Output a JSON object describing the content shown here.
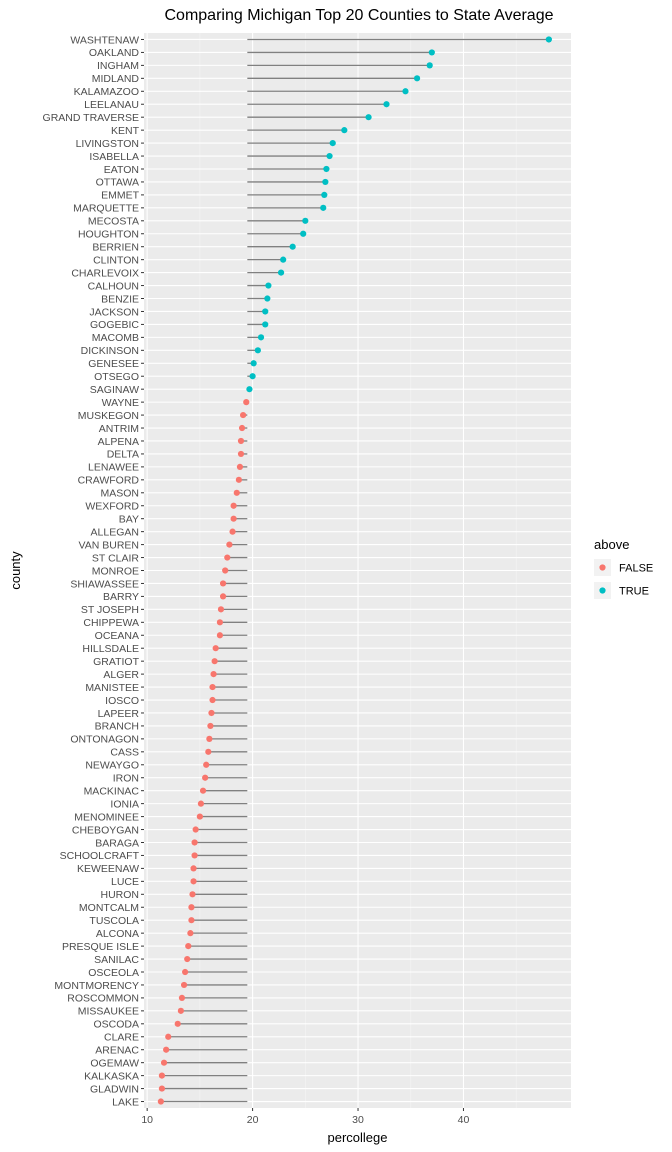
{
  "chart_data": {
    "type": "scatter",
    "subtype": "lollipop",
    "title": "Comparing Michigan Top 20 Counties to State Average",
    "xlabel": "percollege",
    "ylabel": "county",
    "xlim": [
      9.7,
      50.2
    ],
    "x_ticks": [
      10,
      20,
      30,
      40
    ],
    "baseline": 19.5,
    "grid": true,
    "legend": {
      "title": "above",
      "position": "right",
      "entries": [
        {
          "label": "FALSE",
          "color": "#F8766D"
        },
        {
          "label": "TRUE",
          "color": "#00BFC4"
        }
      ]
    },
    "points": [
      {
        "county": "WASHTENAW",
        "percollege": 48.1,
        "above": "TRUE"
      },
      {
        "county": "OAKLAND",
        "percollege": 37.0,
        "above": "TRUE"
      },
      {
        "county": "INGHAM",
        "percollege": 36.8,
        "above": "TRUE"
      },
      {
        "county": "MIDLAND",
        "percollege": 35.6,
        "above": "TRUE"
      },
      {
        "county": "KALAMAZOO",
        "percollege": 34.5,
        "above": "TRUE"
      },
      {
        "county": "LEELANAU",
        "percollege": 32.7,
        "above": "TRUE"
      },
      {
        "county": "GRAND TRAVERSE",
        "percollege": 31.0,
        "above": "TRUE"
      },
      {
        "county": "KENT",
        "percollege": 28.7,
        "above": "TRUE"
      },
      {
        "county": "LIVINGSTON",
        "percollege": 27.6,
        "above": "TRUE"
      },
      {
        "county": "ISABELLA",
        "percollege": 27.3,
        "above": "TRUE"
      },
      {
        "county": "EATON",
        "percollege": 27.0,
        "above": "TRUE"
      },
      {
        "county": "OTTAWA",
        "percollege": 26.9,
        "above": "TRUE"
      },
      {
        "county": "EMMET",
        "percollege": 26.8,
        "above": "TRUE"
      },
      {
        "county": "MARQUETTE",
        "percollege": 26.7,
        "above": "TRUE"
      },
      {
        "county": "MECOSTA",
        "percollege": 25.0,
        "above": "TRUE"
      },
      {
        "county": "HOUGHTON",
        "percollege": 24.8,
        "above": "TRUE"
      },
      {
        "county": "BERRIEN",
        "percollege": 23.8,
        "above": "TRUE"
      },
      {
        "county": "CLINTON",
        "percollege": 22.9,
        "above": "TRUE"
      },
      {
        "county": "CHARLEVOIX",
        "percollege": 22.7,
        "above": "TRUE"
      },
      {
        "county": "CALHOUN",
        "percollege": 21.5,
        "above": "TRUE"
      },
      {
        "county": "BENZIE",
        "percollege": 21.4,
        "above": "TRUE"
      },
      {
        "county": "JACKSON",
        "percollege": 21.2,
        "above": "TRUE"
      },
      {
        "county": "GOGEBIC",
        "percollege": 21.2,
        "above": "TRUE"
      },
      {
        "county": "MACOMB",
        "percollege": 20.8,
        "above": "TRUE"
      },
      {
        "county": "DICKINSON",
        "percollege": 20.5,
        "above": "TRUE"
      },
      {
        "county": "GENESEE",
        "percollege": 20.1,
        "above": "TRUE"
      },
      {
        "county": "OTSEGO",
        "percollege": 20.0,
        "above": "TRUE"
      },
      {
        "county": "SAGINAW",
        "percollege": 19.7,
        "above": "TRUE"
      },
      {
        "county": "WAYNE",
        "percollege": 19.4,
        "above": "FALSE"
      },
      {
        "county": "MUSKEGON",
        "percollege": 19.1,
        "above": "FALSE"
      },
      {
        "county": "ANTRIM",
        "percollege": 19.0,
        "above": "FALSE"
      },
      {
        "county": "ALPENA",
        "percollege": 18.9,
        "above": "FALSE"
      },
      {
        "county": "DELTA",
        "percollege": 18.9,
        "above": "FALSE"
      },
      {
        "county": "LENAWEE",
        "percollege": 18.8,
        "above": "FALSE"
      },
      {
        "county": "CRAWFORD",
        "percollege": 18.7,
        "above": "FALSE"
      },
      {
        "county": "MASON",
        "percollege": 18.5,
        "above": "FALSE"
      },
      {
        "county": "WEXFORD",
        "percollege": 18.2,
        "above": "FALSE"
      },
      {
        "county": "BAY",
        "percollege": 18.2,
        "above": "FALSE"
      },
      {
        "county": "ALLEGAN",
        "percollege": 18.1,
        "above": "FALSE"
      },
      {
        "county": "VAN BUREN",
        "percollege": 17.8,
        "above": "FALSE"
      },
      {
        "county": "ST CLAIR",
        "percollege": 17.6,
        "above": "FALSE"
      },
      {
        "county": "MONROE",
        "percollege": 17.4,
        "above": "FALSE"
      },
      {
        "county": "SHIAWASSEE",
        "percollege": 17.2,
        "above": "FALSE"
      },
      {
        "county": "BARRY",
        "percollege": 17.2,
        "above": "FALSE"
      },
      {
        "county": "ST JOSEPH",
        "percollege": 17.0,
        "above": "FALSE"
      },
      {
        "county": "CHIPPEWA",
        "percollege": 16.9,
        "above": "FALSE"
      },
      {
        "county": "OCEANA",
        "percollege": 16.9,
        "above": "FALSE"
      },
      {
        "county": "HILLSDALE",
        "percollege": 16.5,
        "above": "FALSE"
      },
      {
        "county": "GRATIOT",
        "percollege": 16.4,
        "above": "FALSE"
      },
      {
        "county": "ALGER",
        "percollege": 16.3,
        "above": "FALSE"
      },
      {
        "county": "MANISTEE",
        "percollege": 16.2,
        "above": "FALSE"
      },
      {
        "county": "IOSCO",
        "percollege": 16.2,
        "above": "FALSE"
      },
      {
        "county": "LAPEER",
        "percollege": 16.1,
        "above": "FALSE"
      },
      {
        "county": "BRANCH",
        "percollege": 16.0,
        "above": "FALSE"
      },
      {
        "county": "ONTONAGON",
        "percollege": 15.9,
        "above": "FALSE"
      },
      {
        "county": "CASS",
        "percollege": 15.8,
        "above": "FALSE"
      },
      {
        "county": "NEWAYGO",
        "percollege": 15.6,
        "above": "FALSE"
      },
      {
        "county": "IRON",
        "percollege": 15.5,
        "above": "FALSE"
      },
      {
        "county": "MACKINAC",
        "percollege": 15.3,
        "above": "FALSE"
      },
      {
        "county": "IONIA",
        "percollege": 15.1,
        "above": "FALSE"
      },
      {
        "county": "MENOMINEE",
        "percollege": 15.0,
        "above": "FALSE"
      },
      {
        "county": "CHEBOYGAN",
        "percollege": 14.6,
        "above": "FALSE"
      },
      {
        "county": "BARAGA",
        "percollege": 14.5,
        "above": "FALSE"
      },
      {
        "county": "SCHOOLCRAFT",
        "percollege": 14.5,
        "above": "FALSE"
      },
      {
        "county": "KEWEENAW",
        "percollege": 14.4,
        "above": "FALSE"
      },
      {
        "county": "LUCE",
        "percollege": 14.4,
        "above": "FALSE"
      },
      {
        "county": "HURON",
        "percollege": 14.3,
        "above": "FALSE"
      },
      {
        "county": "MONTCALM",
        "percollege": 14.2,
        "above": "FALSE"
      },
      {
        "county": "TUSCOLA",
        "percollege": 14.2,
        "above": "FALSE"
      },
      {
        "county": "ALCONA",
        "percollege": 14.1,
        "above": "FALSE"
      },
      {
        "county": "PRESQUE ISLE",
        "percollege": 13.9,
        "above": "FALSE"
      },
      {
        "county": "SANILAC",
        "percollege": 13.8,
        "above": "FALSE"
      },
      {
        "county": "OSCEOLA",
        "percollege": 13.6,
        "above": "FALSE"
      },
      {
        "county": "MONTMORENCY",
        "percollege": 13.5,
        "above": "FALSE"
      },
      {
        "county": "ROSCOMMON",
        "percollege": 13.3,
        "above": "FALSE"
      },
      {
        "county": "MISSAUKEE",
        "percollege": 13.2,
        "above": "FALSE"
      },
      {
        "county": "OSCODA",
        "percollege": 12.9,
        "above": "FALSE"
      },
      {
        "county": "CLARE",
        "percollege": 12.0,
        "above": "FALSE"
      },
      {
        "county": "ARENAC",
        "percollege": 11.8,
        "above": "FALSE"
      },
      {
        "county": "OGEMAW",
        "percollege": 11.6,
        "above": "FALSE"
      },
      {
        "county": "KALKASKA",
        "percollege": 11.4,
        "above": "FALSE"
      },
      {
        "county": "GLADWIN",
        "percollege": 11.4,
        "above": "FALSE"
      },
      {
        "county": "LAKE",
        "percollege": 11.3,
        "above": "FALSE"
      }
    ]
  }
}
